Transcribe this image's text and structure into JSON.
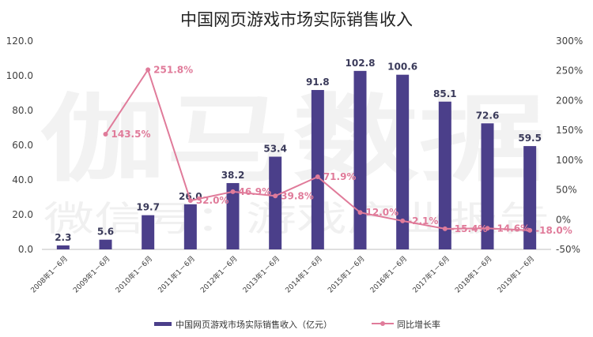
{
  "watermark": {
    "main": "伽马数据",
    "sub": "微信号：游戏产业报告"
  },
  "chart_data": {
    "type": "bar",
    "title": "中国网页游戏市场实际销售收入",
    "categories": [
      "2008年1－6月",
      "2009年1－6月",
      "2010年1－6月",
      "2011年1－6月",
      "2012年1－6月",
      "2013年1－6月",
      "2014年1－6月",
      "2015年1－6月",
      "2016年1－6月",
      "2017年1－6月",
      "2018年1－6月",
      "2019年1－6月"
    ],
    "series": [
      {
        "name": "中国网页游戏市场实际销售收入（亿元）",
        "type": "bar",
        "axis": "left",
        "color": "#4b3f8a",
        "values": [
          2.3,
          5.6,
          19.7,
          26.0,
          38.2,
          53.4,
          91.8,
          102.8,
          100.6,
          85.1,
          72.6,
          59.5
        ],
        "labels": [
          "2.3",
          "5.6",
          "19.7",
          "26.0",
          "38.2",
          "53.4",
          "91.8",
          "102.8",
          "100.6",
          "85.1",
          "72.6",
          "59.5"
        ]
      },
      {
        "name": "同比增长率",
        "type": "line",
        "axis": "right",
        "color": "#e07b9a",
        "values": [
          null,
          143.5,
          251.8,
          32.0,
          46.9,
          39.8,
          71.9,
          12.0,
          -2.1,
          -15.4,
          -14.6,
          -18.0
        ],
        "labels": [
          "",
          "143.5%",
          "251.8%",
          "32.0%",
          "46.9%",
          "39.8%",
          "71.9%",
          "12.0%",
          "-2.1%",
          "-15.4%",
          "-14.6%",
          "-18.0%"
        ]
      }
    ],
    "y_left": {
      "ylim": [
        0,
        120
      ],
      "ticks": [
        "0.0",
        "20.0",
        "40.0",
        "60.0",
        "80.0",
        "100.0",
        "120.0"
      ]
    },
    "y_right": {
      "ylim": [
        -50,
        300
      ],
      "ticks": [
        "-50%",
        "0%",
        "50%",
        "100%",
        "150%",
        "200%",
        "250%",
        "300%"
      ]
    },
    "grid": false,
    "legend": "bottom"
  }
}
